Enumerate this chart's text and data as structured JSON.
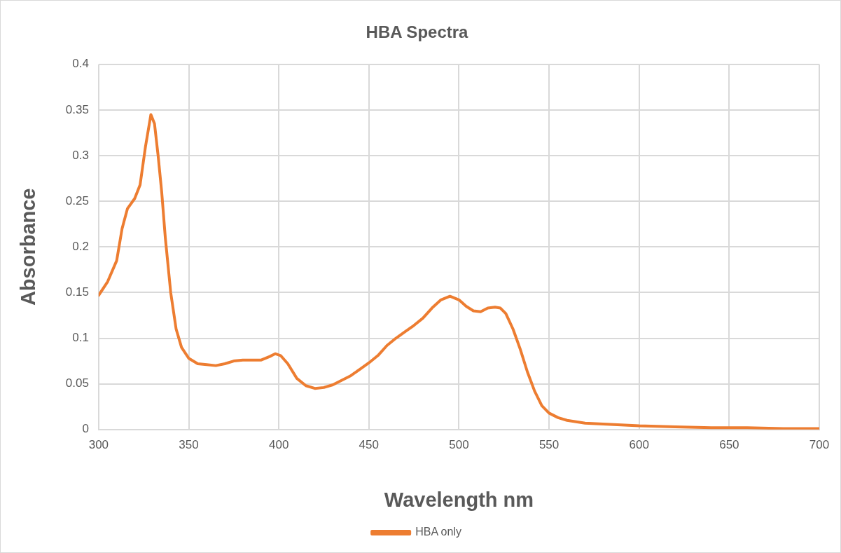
{
  "chart_data": {
    "type": "line",
    "title": "HBA Spectra",
    "xlabel": "Wavelength nm",
    "ylabel": "Absorbance",
    "x": [
      300,
      305,
      310,
      313,
      316,
      320,
      323,
      326,
      329,
      331,
      333,
      335,
      337,
      340,
      343,
      346,
      350,
      355,
      360,
      365,
      370,
      375,
      380,
      385,
      390,
      395,
      398,
      401,
      405,
      410,
      415,
      420,
      425,
      430,
      435,
      440,
      445,
      450,
      455,
      460,
      465,
      470,
      475,
      480,
      485,
      490,
      495,
      500,
      504,
      508,
      512,
      516,
      520,
      523,
      526,
      530,
      534,
      538,
      542,
      546,
      550,
      555,
      560,
      570,
      580,
      590,
      600,
      620,
      640,
      660,
      680,
      700
    ],
    "series": [
      {
        "name": "HBA only",
        "color": "#ed7d31",
        "values": [
          0.147,
          0.162,
          0.185,
          0.22,
          0.242,
          0.253,
          0.268,
          0.31,
          0.345,
          0.335,
          0.3,
          0.26,
          0.21,
          0.15,
          0.11,
          0.09,
          0.078,
          0.072,
          0.071,
          0.07,
          0.072,
          0.075,
          0.076,
          0.076,
          0.076,
          0.08,
          0.083,
          0.081,
          0.072,
          0.056,
          0.048,
          0.045,
          0.046,
          0.049,
          0.054,
          0.059,
          0.066,
          0.073,
          0.081,
          0.092,
          0.1,
          0.107,
          0.114,
          0.122,
          0.133,
          0.142,
          0.146,
          0.142,
          0.135,
          0.13,
          0.129,
          0.133,
          0.134,
          0.133,
          0.127,
          0.11,
          0.088,
          0.063,
          0.042,
          0.026,
          0.018,
          0.013,
          0.01,
          0.007,
          0.006,
          0.005,
          0.004,
          0.003,
          0.002,
          0.002,
          0.001,
          0.001
        ]
      }
    ],
    "xlim": [
      300,
      700
    ],
    "xticks": [
      300,
      350,
      400,
      450,
      500,
      550,
      600,
      650,
      700
    ],
    "ylim": [
      0,
      0.4
    ],
    "yticks": [
      0,
      0.05,
      0.1,
      0.15,
      0.2,
      0.25,
      0.3,
      0.35,
      0.4
    ],
    "grid": true,
    "legend": "bottom",
    "marker": "none",
    "line_style": "solid"
  }
}
